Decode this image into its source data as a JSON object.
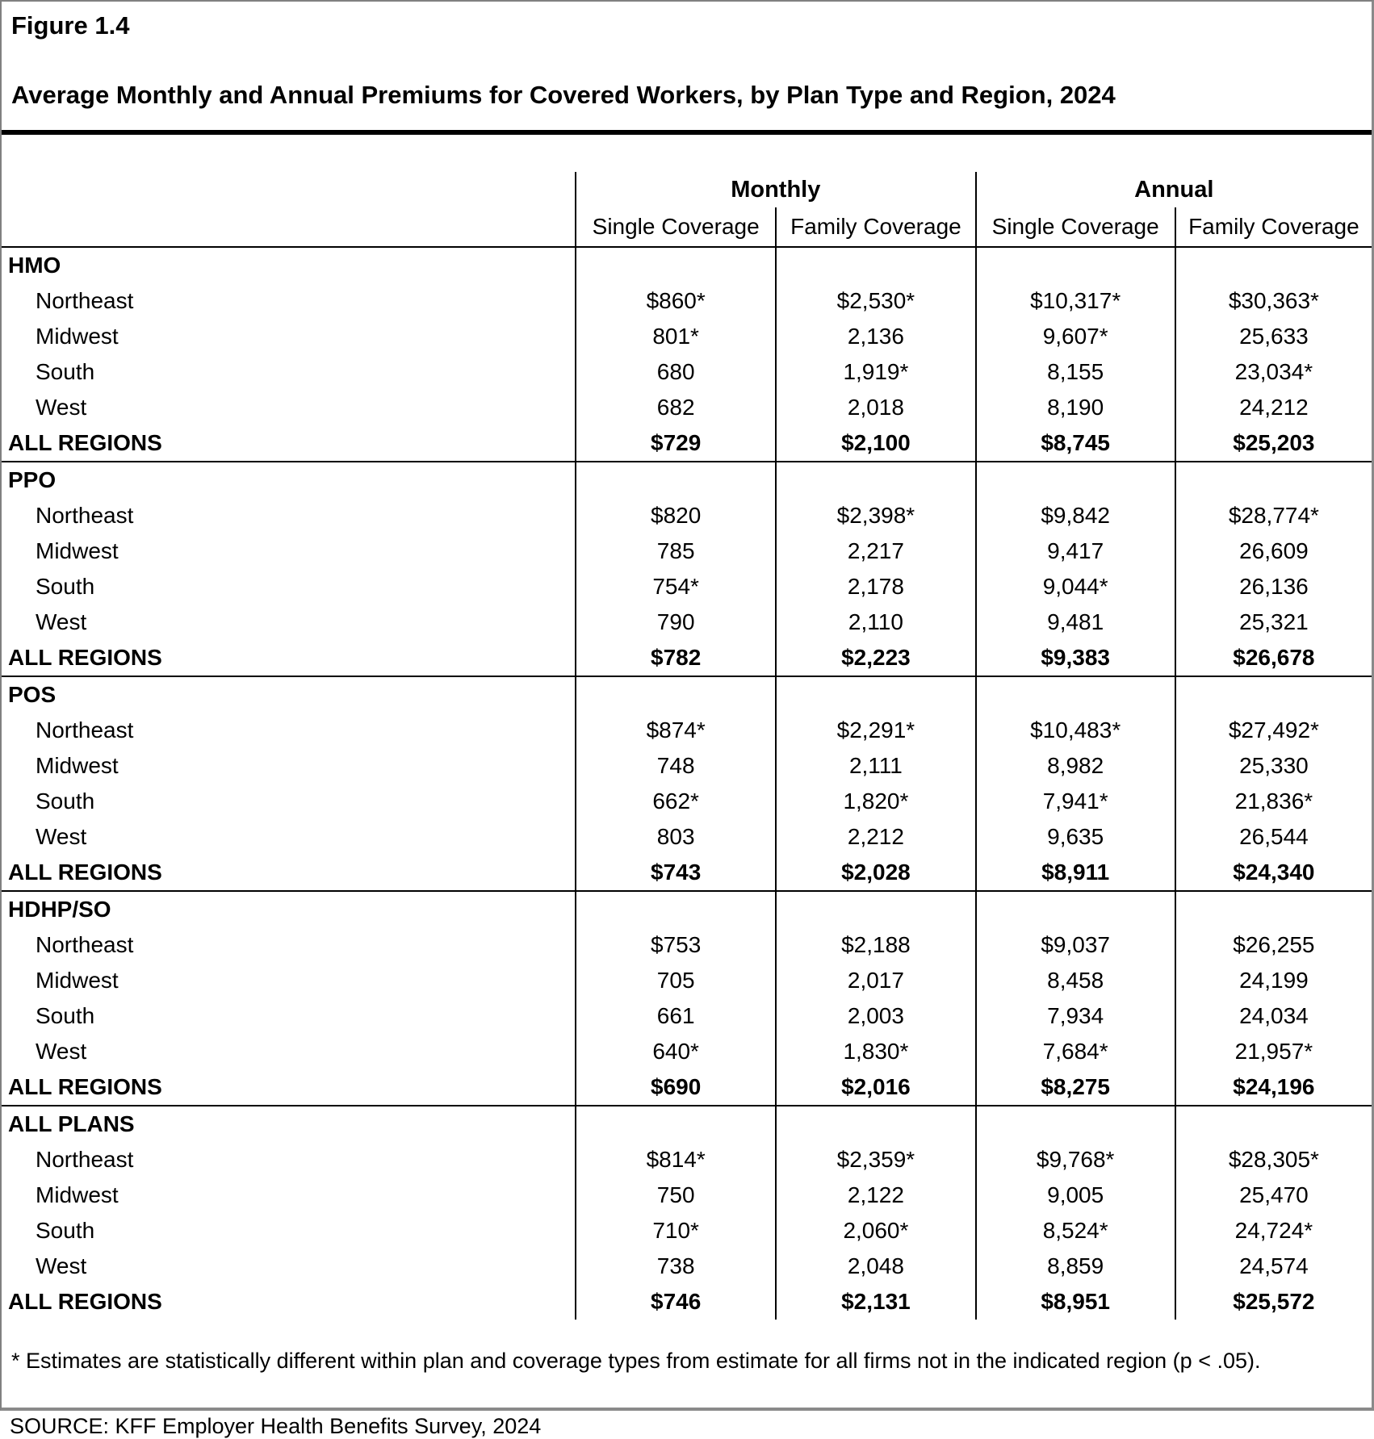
{
  "figure_label": "Figure 1.4",
  "title": "Average Monthly and Annual Premiums for Covered Workers, by Plan Type and Region, 2024",
  "table": {
    "column_groups": [
      "Monthly",
      "Annual"
    ],
    "column_headers": [
      "Single Coverage",
      "Family Coverage",
      "Single Coverage",
      "Family Coverage"
    ],
    "sections": [
      {
        "name": "HMO",
        "rows": [
          {
            "label": "Northeast",
            "values": [
              "$860*",
              "$2,530*",
              "$10,317*",
              "$30,363*"
            ]
          },
          {
            "label": "Midwest",
            "values": [
              "801*",
              "2,136",
              "9,607*",
              "25,633"
            ]
          },
          {
            "label": "South",
            "values": [
              "680",
              "1,919*",
              "8,155",
              "23,034*"
            ]
          },
          {
            "label": "West",
            "values": [
              "682",
              "2,018",
              "8,190",
              "24,212"
            ]
          }
        ],
        "total": {
          "label": "ALL REGIONS",
          "values": [
            "$729",
            "$2,100",
            "$8,745",
            "$25,203"
          ]
        }
      },
      {
        "name": "PPO",
        "rows": [
          {
            "label": "Northeast",
            "values": [
              "$820",
              "$2,398*",
              "$9,842",
              "$28,774*"
            ]
          },
          {
            "label": "Midwest",
            "values": [
              "785",
              "2,217",
              "9,417",
              "26,609"
            ]
          },
          {
            "label": "South",
            "values": [
              "754*",
              "2,178",
              "9,044*",
              "26,136"
            ]
          },
          {
            "label": "West",
            "values": [
              "790",
              "2,110",
              "9,481",
              "25,321"
            ]
          }
        ],
        "total": {
          "label": "ALL REGIONS",
          "values": [
            "$782",
            "$2,223",
            "$9,383",
            "$26,678"
          ]
        }
      },
      {
        "name": "POS",
        "rows": [
          {
            "label": "Northeast",
            "values": [
              "$874*",
              "$2,291*",
              "$10,483*",
              "$27,492*"
            ]
          },
          {
            "label": "Midwest",
            "values": [
              "748",
              "2,111",
              "8,982",
              "25,330"
            ]
          },
          {
            "label": "South",
            "values": [
              "662*",
              "1,820*",
              "7,941*",
              "21,836*"
            ]
          },
          {
            "label": "West",
            "values": [
              "803",
              "2,212",
              "9,635",
              "26,544"
            ]
          }
        ],
        "total": {
          "label": "ALL REGIONS",
          "values": [
            "$743",
            "$2,028",
            "$8,911",
            "$24,340"
          ]
        }
      },
      {
        "name": "HDHP/SO",
        "rows": [
          {
            "label": "Northeast",
            "values": [
              "$753",
              "$2,188",
              "$9,037",
              "$26,255"
            ]
          },
          {
            "label": "Midwest",
            "values": [
              "705",
              "2,017",
              "8,458",
              "24,199"
            ]
          },
          {
            "label": "South",
            "values": [
              "661",
              "2,003",
              "7,934",
              "24,034"
            ]
          },
          {
            "label": "West",
            "values": [
              "640*",
              "1,830*",
              "7,684*",
              "21,957*"
            ]
          }
        ],
        "total": {
          "label": "ALL REGIONS",
          "values": [
            "$690",
            "$2,016",
            "$8,275",
            "$24,196"
          ]
        }
      },
      {
        "name": "ALL PLANS",
        "rows": [
          {
            "label": "Northeast",
            "values": [
              "$814*",
              "$2,359*",
              "$9,768*",
              "$28,305*"
            ]
          },
          {
            "label": "Midwest",
            "values": [
              "750",
              "2,122",
              "9,005",
              "25,470"
            ]
          },
          {
            "label": "South",
            "values": [
              "710*",
              "2,060*",
              "8,524*",
              "24,724*"
            ]
          },
          {
            "label": "West",
            "values": [
              "738",
              "2,048",
              "8,859",
              "24,574"
            ]
          }
        ],
        "total": {
          "label": "ALL REGIONS",
          "values": [
            "$746",
            "$2,131",
            "$8,951",
            "$25,572"
          ]
        }
      }
    ]
  },
  "footnote": "* Estimates are statistically different within plan and coverage types from estimate for all firms not in the indicated region (p < .05).",
  "source": "SOURCE: KFF Employer Health Benefits Survey, 2024"
}
